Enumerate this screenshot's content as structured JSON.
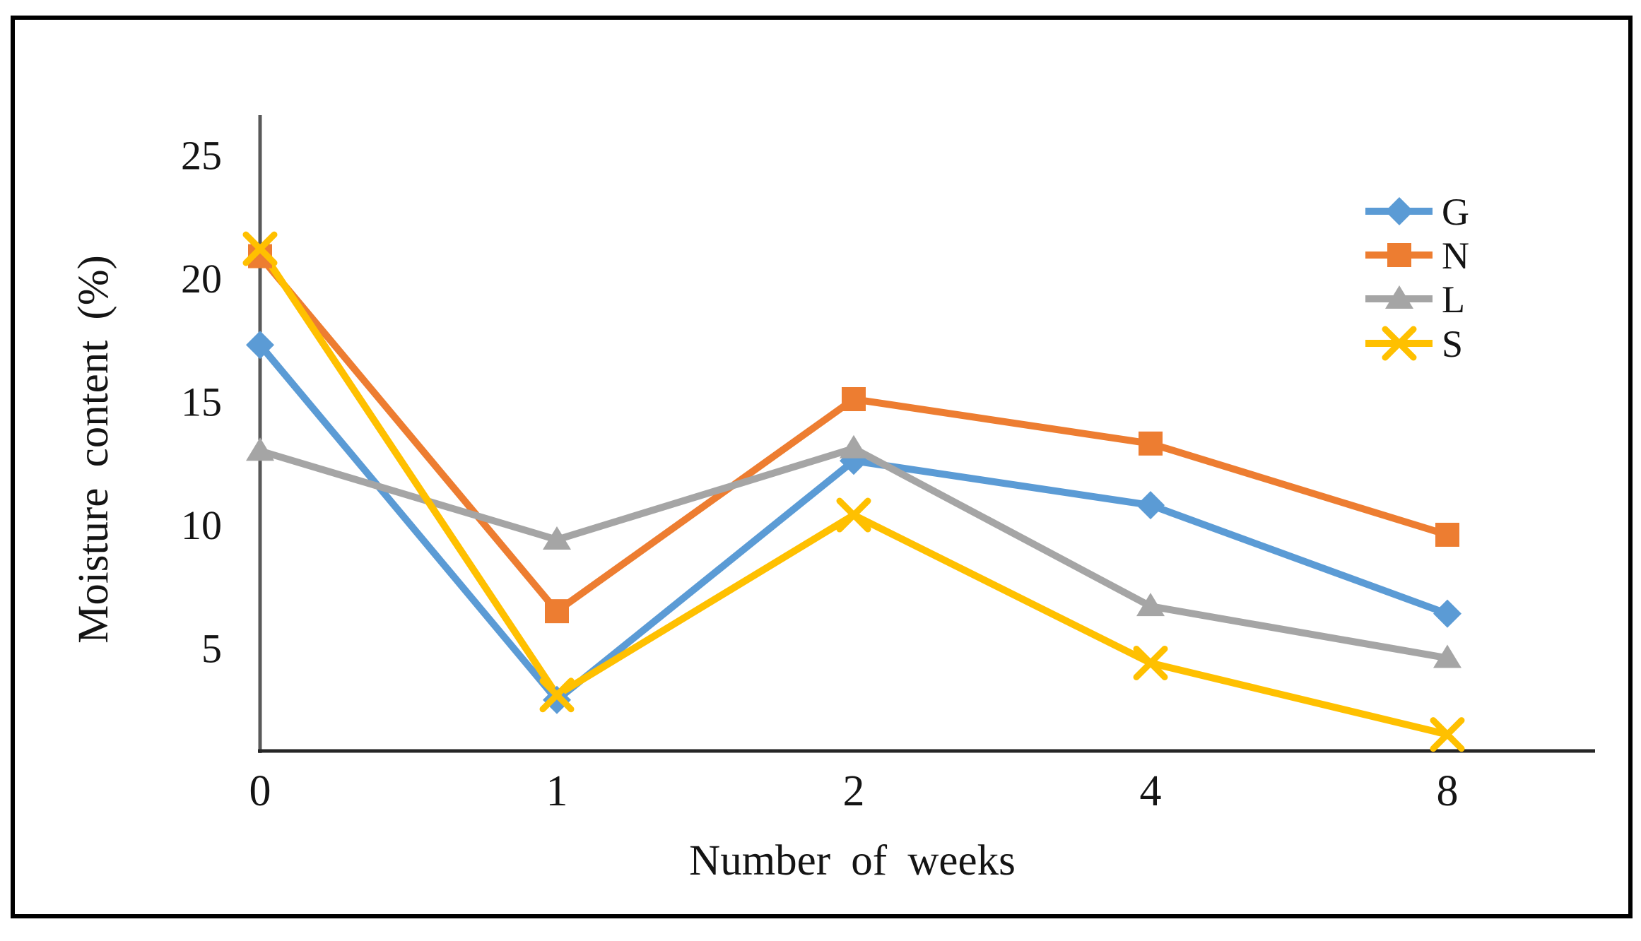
{
  "chart_data": {
    "type": "line",
    "title": "",
    "xlabel": "Number of weeks",
    "ylabel": "Moisture content (%)",
    "categories": [
      "0",
      "1",
      "2",
      "4",
      "8"
    ],
    "yticks": [
      5,
      10,
      15,
      20,
      25
    ],
    "ylim": [
      0,
      26
    ],
    "grid": false,
    "legend_position": "inside-right",
    "series": [
      {
        "name": "G",
        "marker": "diamond",
        "color": "#5B9BD5",
        "values": [
          17.3,
          2.9,
          12.6,
          10.8,
          6.4
        ]
      },
      {
        "name": "N",
        "marker": "square",
        "color": "#ED7D31",
        "values": [
          20.9,
          6.5,
          15.1,
          13.3,
          9.6
        ]
      },
      {
        "name": "L",
        "marker": "triangle",
        "color": "#A5A5A5",
        "values": [
          13.0,
          9.4,
          13.1,
          6.7,
          4.6
        ]
      },
      {
        "name": "S",
        "marker": "x",
        "color": "#FFC000",
        "values": [
          21.2,
          3.1,
          10.4,
          4.4,
          1.5
        ]
      }
    ],
    "axis_color": "#404040",
    "text_color": "#141414",
    "border_color": "#000000"
  }
}
